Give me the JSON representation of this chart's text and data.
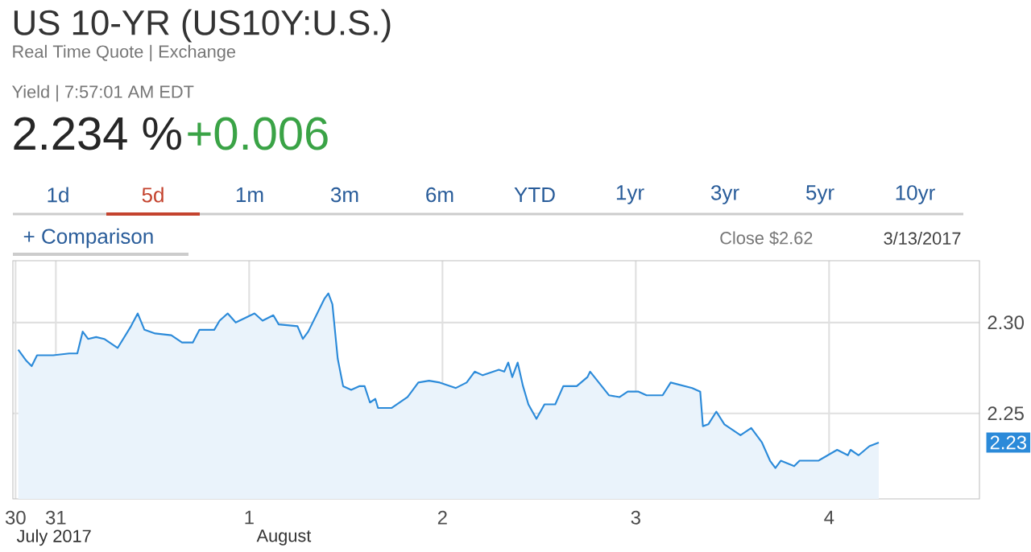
{
  "chart_data": {
    "type": "area",
    "title": "US 10-YR (US10Y:U.S.)",
    "subtitle": "Real Time Quote | Exchange",
    "annotations": [
      "Yield | 7:57:01 AM EDT",
      "2.234 %",
      "+0.006",
      "1d",
      "5d",
      "1m",
      "3m",
      "6m",
      "YTD",
      "1yr",
      "3yr",
      "5yr",
      "10yr",
      "+ Comparison",
      "Close $2.62",
      "3/13/2017",
      "July 2017",
      "August",
      "2.23"
    ],
    "x": [
      "2017-07-30T19:20",
      "2017-07-30T20:20",
      "2017-07-30T21:00",
      "2017-07-30T21:40",
      "2017-07-30T23:40",
      "2017-07-31T01:40",
      "2017-07-31T02:40",
      "2017-07-31T03:20",
      "2017-07-31T04:00",
      "2017-07-31T05:00",
      "2017-07-31T06:00",
      "2017-07-31T07:40",
      "2017-07-31T09:20",
      "2017-07-31T10:10",
      "2017-07-31T11:00",
      "2017-07-31T12:20",
      "2017-07-31T14:20",
      "2017-07-31T15:40",
      "2017-07-31T17:00",
      "2017-07-31T17:50",
      "2017-07-31T19:40",
      "2017-07-31T20:20",
      "2017-07-31T21:20",
      "2017-07-31T22:20",
      "2017-08-01T00:40",
      "2017-08-01T01:40",
      "2017-08-01T03:00",
      "2017-08-01T03:40",
      "2017-08-01T06:00",
      "2017-08-01T06:40",
      "2017-08-01T07:20",
      "2017-08-01T08:20",
      "2017-08-01T09:20",
      "2017-08-01T09:50",
      "2017-08-01T10:20",
      "2017-08-01T11:00",
      "2017-08-01T11:40",
      "2017-08-01T12:40",
      "2017-08-01T13:40",
      "2017-08-01T14:20",
      "2017-08-01T15:00",
      "2017-08-01T15:40",
      "2017-08-01T16:00",
      "2017-08-01T17:40",
      "2017-08-01T19:40",
      "2017-08-01T21:00",
      "2017-08-01T22:20",
      "2017-08-01T23:40",
      "2017-08-02T01:40",
      "2017-08-02T03:00",
      "2017-08-02T04:00",
      "2017-08-02T05:00",
      "2017-08-02T07:00",
      "2017-08-02T07:40",
      "2017-08-02T08:10",
      "2017-08-02T08:40",
      "2017-08-02T09:20",
      "2017-08-02T10:00",
      "2017-08-02T10:40",
      "2017-08-02T11:40",
      "2017-08-02T12:40",
      "2017-08-02T14:00",
      "2017-08-02T15:00",
      "2017-08-02T16:40",
      "2017-08-02T18:00",
      "2017-08-02T18:20",
      "2017-08-02T20:40",
      "2017-08-02T22:00",
      "2017-08-02T23:00",
      "2017-08-03T00:20",
      "2017-08-03T01:20",
      "2017-08-03T03:20",
      "2017-08-03T04:20",
      "2017-08-03T07:00",
      "2017-08-03T08:00",
      "2017-08-03T08:20",
      "2017-08-03T09:00",
      "2017-08-03T10:00",
      "2017-08-03T11:00",
      "2017-08-03T13:00",
      "2017-08-03T14:20",
      "2017-08-03T15:40",
      "2017-08-03T16:40",
      "2017-08-03T17:20",
      "2017-08-03T18:00",
      "2017-08-03T19:40",
      "2017-08-03T20:20",
      "2017-08-03T22:40",
      "2017-08-04T01:00",
      "2017-08-04T02:20",
      "2017-08-04T02:40",
      "2017-08-04T03:40",
      "2017-08-04T05:00",
      "2017-08-04T06:10"
    ],
    "values": [
      2.285,
      2.279,
      2.276,
      2.282,
      2.282,
      2.283,
      2.283,
      2.295,
      2.291,
      2.292,
      2.291,
      2.286,
      2.298,
      2.305,
      2.296,
      2.294,
      2.293,
      2.289,
      2.289,
      2.296,
      2.296,
      2.301,
      2.305,
      2.3,
      2.305,
      2.301,
      2.304,
      2.299,
      2.298,
      2.291,
      2.295,
      2.304,
      2.313,
      2.316,
      2.31,
      2.28,
      2.265,
      2.263,
      2.265,
      2.265,
      2.256,
      2.258,
      2.253,
      2.253,
      2.259,
      2.267,
      2.268,
      2.267,
      2.264,
      2.267,
      2.273,
      2.271,
      2.274,
      2.273,
      2.278,
      2.27,
      2.278,
      2.265,
      2.255,
      2.247,
      2.255,
      2.255,
      2.265,
      2.265,
      2.27,
      2.273,
      2.26,
      2.259,
      2.262,
      2.262,
      2.26,
      2.26,
      2.267,
      2.264,
      2.262,
      2.243,
      2.244,
      2.251,
      2.244,
      2.238,
      2.242,
      2.234,
      2.224,
      2.22,
      2.224,
      2.221,
      2.224,
      2.224,
      2.23,
      2.227,
      2.23,
      2.227,
      2.232,
      2.234
    ],
    "color": "#2b8ad9",
    "xlim": [
      "2017-07-30T18:40",
      "2017-08-04T18:40"
    ],
    "ylim": [
      2.203,
      2.334
    ],
    "xticks": [
      {
        "value": "2017-07-30T19:00",
        "label": "30"
      },
      {
        "value": "2017-07-31",
        "label": "31"
      },
      {
        "value": "2017-08-01",
        "label": "1"
      },
      {
        "value": "2017-08-02",
        "label": "2"
      },
      {
        "value": "2017-08-03",
        "label": "3"
      },
      {
        "value": "2017-08-04",
        "label": "4"
      }
    ],
    "yticks": [
      {
        "value": 2.25,
        "label": "2.25"
      },
      {
        "value": 2.3,
        "label": "2.30"
      }
    ],
    "grid": true
  }
}
